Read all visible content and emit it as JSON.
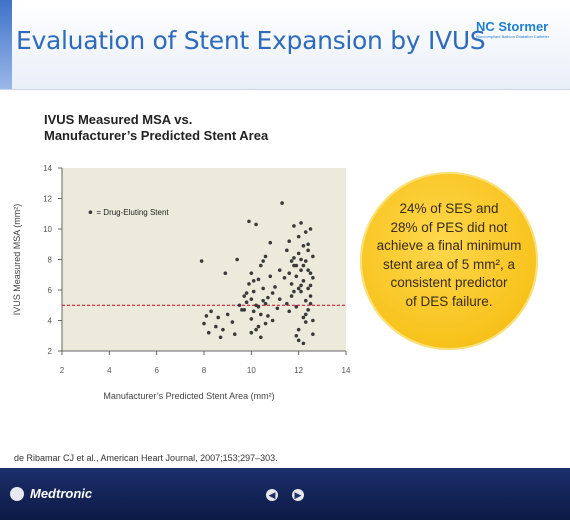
{
  "header": {
    "title": "Evaluation of Stent Expansion by IVUS",
    "brand": "NC Stormer",
    "brand_sub": "Noncompliant Balloon Dilatation Catheter"
  },
  "callout": {
    "lines": [
      "24% of SES and",
      "28% of PES did not",
      "achieve a final minimum",
      "stent area of 5 mm², a",
      "consistent predictor",
      "of DES failure."
    ]
  },
  "citation": "de Ribamar CJ et al., American Heart Journal, 2007;153;297–303.",
  "footer": {
    "brand": "Medtronic",
    "prev_icon": "chevron-left-icon",
    "next_icon": "chevron-right-icon"
  },
  "colors": {
    "title": "#2e6bbd",
    "plot_bg": "#ecebdb",
    "points": "#3a3a3a",
    "threshold": "#d6001c",
    "callout": "#f7c21b"
  },
  "chart_data": {
    "type": "scatter",
    "title_lines": [
      "IVUS Measured MSA vs.",
      "Manufacturer’s Predicted Stent Area"
    ],
    "xlabel": "Manufacturer’s Predicted Stent Area (mm²)",
    "ylabel": "IVUS Measured MSA (mm²)",
    "xlim": [
      2,
      14
    ],
    "ylim": [
      2,
      14
    ],
    "x_ticks": [
      2,
      4,
      6,
      8,
      10,
      12,
      14
    ],
    "y_ticks": [
      2,
      4,
      6,
      8,
      10,
      12,
      14
    ],
    "legend": {
      "label": "= Drug-Eluting Stent",
      "position": "top-left"
    },
    "reference_line": {
      "y": 5,
      "style": "dashed"
    },
    "series": [
      {
        "points": [
          [
            7.9,
            7.9
          ],
          [
            8.0,
            3.8
          ],
          [
            8.1,
            4.3
          ],
          [
            8.2,
            3.2
          ],
          [
            8.3,
            4.6
          ],
          [
            8.5,
            3.6
          ],
          [
            8.6,
            4.2
          ],
          [
            8.7,
            2.9
          ],
          [
            8.8,
            3.4
          ],
          [
            8.9,
            7.1
          ],
          [
            9.0,
            4.4
          ],
          [
            9.2,
            3.9
          ],
          [
            9.3,
            3.1
          ],
          [
            9.4,
            8.0
          ],
          [
            9.5,
            5.0
          ],
          [
            9.6,
            4.7
          ],
          [
            9.7,
            5.6
          ],
          [
            9.8,
            5.2
          ],
          [
            9.9,
            6.4
          ],
          [
            10.0,
            7.1
          ],
          [
            9.9,
            10.5
          ],
          [
            10.2,
            10.3
          ],
          [
            10.0,
            4.1
          ],
          [
            10.1,
            5.9
          ],
          [
            10.1,
            4.6
          ],
          [
            10.2,
            3.4
          ],
          [
            10.3,
            6.7
          ],
          [
            10.3,
            4.9
          ],
          [
            10.4,
            7.6
          ],
          [
            10.4,
            2.9
          ],
          [
            10.5,
            5.3
          ],
          [
            10.5,
            6.1
          ],
          [
            10.6,
            3.8
          ],
          [
            10.6,
            8.2
          ],
          [
            10.7,
            5.5
          ],
          [
            10.7,
            4.3
          ],
          [
            10.8,
            6.9
          ],
          [
            10.8,
            9.1
          ],
          [
            10.9,
            4.0
          ],
          [
            10.9,
            5.8
          ],
          [
            10.0,
            5.4
          ],
          [
            10.2,
            5.0
          ],
          [
            10.4,
            4.4
          ],
          [
            10.6,
            5.1
          ],
          [
            10.3,
            3.6
          ],
          [
            9.8,
            5.8
          ],
          [
            10.1,
            6.6
          ],
          [
            10.5,
            7.9
          ],
          [
            9.7,
            4.7
          ],
          [
            10.0,
            3.2
          ],
          [
            11.0,
            6.2
          ],
          [
            11.1,
            4.8
          ],
          [
            11.2,
            5.4
          ],
          [
            11.2,
            7.3
          ],
          [
            11.3,
            11.7
          ],
          [
            11.4,
            6.8
          ],
          [
            11.5,
            5.1
          ],
          [
            11.5,
            8.6
          ],
          [
            11.6,
            7.1
          ],
          [
            11.6,
            9.2
          ],
          [
            11.6,
            4.6
          ],
          [
            11.7,
            6.4
          ],
          [
            11.7,
            5.6
          ],
          [
            11.8,
            8.1
          ],
          [
            11.8,
            7.6
          ],
          [
            11.8,
            10.2
          ],
          [
            11.9,
            4.9
          ],
          [
            11.9,
            6.9
          ],
          [
            12.0,
            9.5
          ],
          [
            12.0,
            3.4
          ],
          [
            12.0,
            8.4
          ],
          [
            12.1,
            5.9
          ],
          [
            12.1,
            7.3
          ],
          [
            12.1,
            10.4
          ],
          [
            12.2,
            4.2
          ],
          [
            12.2,
            6.6
          ],
          [
            12.2,
            8.9
          ],
          [
            12.3,
            3.9
          ],
          [
            12.3,
            5.3
          ],
          [
            12.3,
            7.9
          ],
          [
            12.4,
            6.1
          ],
          [
            12.4,
            9.0
          ],
          [
            12.4,
            4.7
          ],
          [
            12.5,
            7.1
          ],
          [
            12.5,
            10.0
          ],
          [
            12.5,
            5.6
          ],
          [
            12.6,
            8.2
          ],
          [
            12.6,
            3.1
          ],
          [
            12.6,
            6.8
          ],
          [
            12.0,
            2.7
          ],
          [
            12.2,
            2.5
          ],
          [
            11.9,
            3.0
          ],
          [
            12.4,
            8.6
          ],
          [
            11.9,
            7.6
          ],
          [
            12.3,
            9.8
          ],
          [
            12.1,
            6.3
          ],
          [
            12.6,
            4.0
          ],
          [
            11.7,
            7.9
          ],
          [
            12.5,
            5.1
          ],
          [
            11.8,
            5.9
          ],
          [
            12.2,
            7.6
          ],
          [
            12.0,
            6.1
          ],
          [
            12.3,
            4.4
          ],
          [
            12.4,
            7.3
          ],
          [
            12.1,
            8.0
          ],
          [
            12.5,
            6.3
          ]
        ]
      }
    ]
  }
}
